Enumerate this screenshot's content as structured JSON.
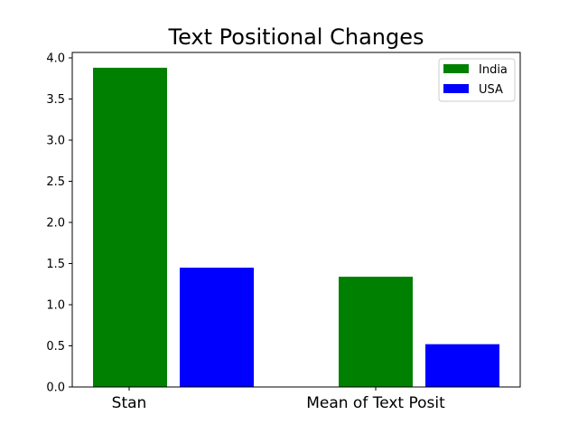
{
  "chart_data": {
    "type": "bar",
    "title": "Text Positional Changes",
    "xlabel": "",
    "ylabel": "",
    "categories": [
      "Stan",
      "Mean of Text Posit"
    ],
    "series": [
      {
        "name": "India",
        "values": [
          3.88,
          1.34
        ],
        "color": "#008000"
      },
      {
        "name": "USA",
        "values": [
          1.45,
          0.52
        ],
        "color": "#0000ff"
      }
    ],
    "ylim": [
      0,
      4.0
    ],
    "yticks": [
      "0.0",
      "0.5",
      "1.0",
      "1.5",
      "2.0",
      "2.5",
      "3.0",
      "3.5",
      "4.0"
    ],
    "grid": false,
    "legend_position": "top-right"
  }
}
